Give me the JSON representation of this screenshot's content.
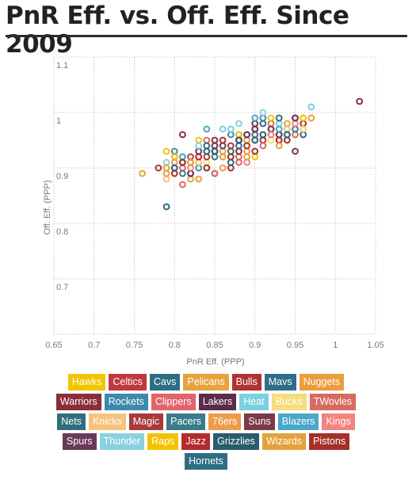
{
  "title": "PnR Eff. vs. Off. Eff. Since 2009",
  "chart_data": {
    "type": "scatter",
    "xlabel": "PnR Eff. (PPP)",
    "ylabel": "Off. Eff. (PPP)",
    "xlim": [
      0.65,
      1.05
    ],
    "ylim": [
      0.6,
      1.1
    ],
    "x_ticks": [
      "0.65",
      "0.7",
      "0.75",
      "0.8",
      "0.85",
      "0.9",
      "0.95",
      "1",
      "1.05"
    ],
    "y_ticks": [
      "1.1",
      "1",
      "0.9",
      "0.8",
      "0.7"
    ],
    "grid": true,
    "marker": "hollow-circle",
    "series": [
      {
        "name": "Hawks",
        "color": "#F2C500",
        "points": [
          [
            0.79,
            0.93
          ],
          [
            0.83,
            0.95
          ],
          [
            0.87,
            0.92
          ],
          [
            0.96,
            0.99
          ],
          [
            0.9,
            0.92
          ]
        ]
      },
      {
        "name": "Celtics",
        "color": "#C0393B",
        "points": [
          [
            0.8,
            0.9
          ],
          [
            0.82,
            0.92
          ],
          [
            0.85,
            0.94
          ],
          [
            0.88,
            0.95
          ],
          [
            0.92,
            0.97
          ]
        ]
      },
      {
        "name": "Cavs",
        "color": "#2C6E83",
        "points": [
          [
            0.79,
            0.83
          ],
          [
            0.84,
            0.9
          ],
          [
            0.88,
            0.96
          ],
          [
            0.91,
            0.98
          ],
          [
            0.85,
            0.89
          ]
        ]
      },
      {
        "name": "Pelicans",
        "color": "#E8A33D",
        "points": [
          [
            0.76,
            0.89
          ],
          [
            0.82,
            0.88
          ],
          [
            0.86,
            0.93
          ],
          [
            0.9,
            0.96
          ],
          [
            0.94,
            0.98
          ]
        ]
      },
      {
        "name": "Bulls",
        "color": "#B03232",
        "points": [
          [
            0.78,
            0.9
          ],
          [
            0.83,
            0.91
          ],
          [
            0.87,
            0.9
          ],
          [
            0.91,
            0.95
          ],
          [
            0.96,
            0.98
          ]
        ]
      },
      {
        "name": "Mavs",
        "color": "#2E6E8A",
        "points": [
          [
            0.81,
            0.92
          ],
          [
            0.84,
            0.93
          ],
          [
            0.88,
            0.94
          ],
          [
            0.92,
            0.96
          ],
          [
            0.96,
            0.96
          ]
        ]
      },
      {
        "name": "Nuggets",
        "color": "#EC9C3C",
        "points": [
          [
            0.8,
            0.91
          ],
          [
            0.85,
            0.92
          ],
          [
            0.89,
            0.95
          ],
          [
            0.93,
            0.97
          ],
          [
            0.97,
            0.99
          ]
        ]
      },
      {
        "name": "Warriors",
        "color": "#8B2E3B",
        "points": [
          [
            0.81,
            0.96
          ],
          [
            0.85,
            0.95
          ],
          [
            0.9,
            0.98
          ],
          [
            0.95,
            0.99
          ],
          [
            1.03,
            1.02
          ]
        ]
      },
      {
        "name": "Rockets",
        "color": "#3C8AAE",
        "points": [
          [
            0.8,
            0.93
          ],
          [
            0.83,
            0.9
          ],
          [
            0.87,
            0.96
          ],
          [
            0.91,
            0.99
          ],
          [
            0.94,
            0.97
          ]
        ]
      },
      {
        "name": "Clippers",
        "color": "#E0646A",
        "points": [
          [
            0.81,
            0.9
          ],
          [
            0.84,
            0.95
          ],
          [
            0.88,
            0.91
          ],
          [
            0.92,
            0.98
          ],
          [
            0.95,
            0.99
          ]
        ]
      },
      {
        "name": "Lakers",
        "color": "#5A2C4A",
        "points": [
          [
            0.82,
            0.89
          ],
          [
            0.85,
            0.93
          ],
          [
            0.89,
            0.96
          ],
          [
            0.93,
            0.96
          ],
          [
            0.96,
            0.97
          ]
        ]
      },
      {
        "name": "Heat",
        "color": "#7CCFE0",
        "points": [
          [
            0.83,
            0.92
          ],
          [
            0.86,
            0.97
          ],
          [
            0.9,
            0.97
          ],
          [
            0.93,
            0.98
          ],
          [
            0.97,
            1.01
          ]
        ]
      },
      {
        "name": "Bucks",
        "color": "#F5DC7C",
        "points": [
          [
            0.8,
            0.89
          ],
          [
            0.84,
            0.91
          ],
          [
            0.88,
            0.93
          ],
          [
            0.92,
            0.95
          ],
          [
            0.96,
            0.97
          ]
        ]
      },
      {
        "name": "TWovles",
        "color": "#D96A63",
        "points": [
          [
            0.81,
            0.87
          ],
          [
            0.85,
            0.89
          ],
          [
            0.88,
            0.92
          ],
          [
            0.91,
            0.94
          ],
          [
            0.95,
            0.96
          ]
        ]
      },
      {
        "name": "Nets",
        "color": "#2F6F7E",
        "points": [
          [
            0.8,
            0.9
          ],
          [
            0.84,
            0.94
          ],
          [
            0.87,
            0.93
          ],
          [
            0.9,
            0.95
          ],
          [
            0.93,
            0.99
          ]
        ]
      },
      {
        "name": "Knicks",
        "color": "#F6C27C",
        "points": [
          [
            0.79,
            0.88
          ],
          [
            0.83,
            0.91
          ],
          [
            0.86,
            0.92
          ],
          [
            0.9,
            0.96
          ],
          [
            0.94,
            0.97
          ]
        ]
      },
      {
        "name": "Magic",
        "color": "#A83A3A",
        "points": [
          [
            0.8,
            0.9
          ],
          [
            0.84,
            0.92
          ],
          [
            0.87,
            0.94
          ],
          [
            0.9,
            0.97
          ],
          [
            0.93,
            0.95
          ]
        ]
      },
      {
        "name": "Pacers",
        "color": "#3A7C8C",
        "points": [
          [
            0.81,
            0.89
          ],
          [
            0.85,
            0.92
          ],
          [
            0.88,
            0.95
          ],
          [
            0.9,
            0.96
          ],
          [
            0.95,
            0.97
          ]
        ]
      },
      {
        "name": "76ers",
        "color": "#EE9C4C",
        "points": [
          [
            0.79,
            0.89
          ],
          [
            0.83,
            0.88
          ],
          [
            0.86,
            0.9
          ],
          [
            0.89,
            0.93
          ],
          [
            0.92,
            0.96
          ]
        ]
      },
      {
        "name": "Suns",
        "color": "#7A3A4A",
        "points": [
          [
            0.82,
            0.91
          ],
          [
            0.85,
            0.94
          ],
          [
            0.88,
            0.93
          ],
          [
            0.92,
            0.97
          ],
          [
            0.95,
            0.93
          ]
        ]
      },
      {
        "name": "Blazers",
        "color": "#4AA7C7",
        "points": [
          [
            0.81,
            0.92
          ],
          [
            0.84,
            0.97
          ],
          [
            0.87,
            0.97
          ],
          [
            0.9,
            0.99
          ],
          [
            0.93,
            0.97
          ]
        ]
      },
      {
        "name": "Kings",
        "color": "#F28480",
        "points": [
          [
            0.82,
            0.9
          ],
          [
            0.86,
            0.92
          ],
          [
            0.89,
            0.91
          ],
          [
            0.92,
            0.96
          ],
          [
            0.95,
            0.98
          ]
        ]
      },
      {
        "name": "Spurs",
        "color": "#6A3A5A",
        "points": [
          [
            0.8,
            0.92
          ],
          [
            0.83,
            0.93
          ],
          [
            0.86,
            0.94
          ],
          [
            0.9,
            0.97
          ],
          [
            0.95,
            0.99
          ]
        ]
      },
      {
        "name": "Thunder",
        "color": "#8AD1E0",
        "points": [
          [
            0.79,
            0.91
          ],
          [
            0.83,
            0.94
          ],
          [
            0.87,
            0.97
          ],
          [
            0.91,
            1.0
          ],
          [
            0.88,
            0.98
          ]
        ]
      },
      {
        "name": "Raps",
        "color": "#F2C200",
        "points": [
          [
            0.8,
            0.92
          ],
          [
            0.84,
            0.9
          ],
          [
            0.88,
            0.96
          ],
          [
            0.92,
            0.99
          ],
          [
            0.96,
            0.99
          ]
        ]
      },
      {
        "name": "Jazz",
        "color": "#B52A2A",
        "points": [
          [
            0.8,
            0.89
          ],
          [
            0.83,
            0.92
          ],
          [
            0.86,
            0.95
          ],
          [
            0.89,
            0.94
          ],
          [
            0.93,
            0.95
          ]
        ]
      },
      {
        "name": "Grizzlies",
        "color": "#2A5B6E",
        "points": [
          [
            0.81,
            0.91
          ],
          [
            0.85,
            0.93
          ],
          [
            0.88,
            0.95
          ],
          [
            0.91,
            0.96
          ],
          [
            0.94,
            0.96
          ]
        ]
      },
      {
        "name": "Wizards",
        "color": "#E5A23C",
        "points": [
          [
            0.79,
            0.9
          ],
          [
            0.82,
            0.91
          ],
          [
            0.86,
            0.92
          ],
          [
            0.89,
            0.92
          ],
          [
            0.93,
            0.94
          ]
        ]
      },
      {
        "name": "Pistons",
        "color": "#A5302A",
        "points": [
          [
            0.81,
            0.91
          ],
          [
            0.84,
            0.9
          ],
          [
            0.87,
            0.92
          ],
          [
            0.9,
            0.93
          ],
          [
            0.94,
            0.95
          ]
        ]
      },
      {
        "name": "Hornets",
        "color": "#2C6E83",
        "points": [
          [
            0.8,
            0.9
          ],
          [
            0.84,
            0.93
          ],
          [
            0.87,
            0.91
          ],
          [
            0.9,
            0.95
          ],
          [
            0.94,
            0.96
          ]
        ]
      }
    ]
  }
}
